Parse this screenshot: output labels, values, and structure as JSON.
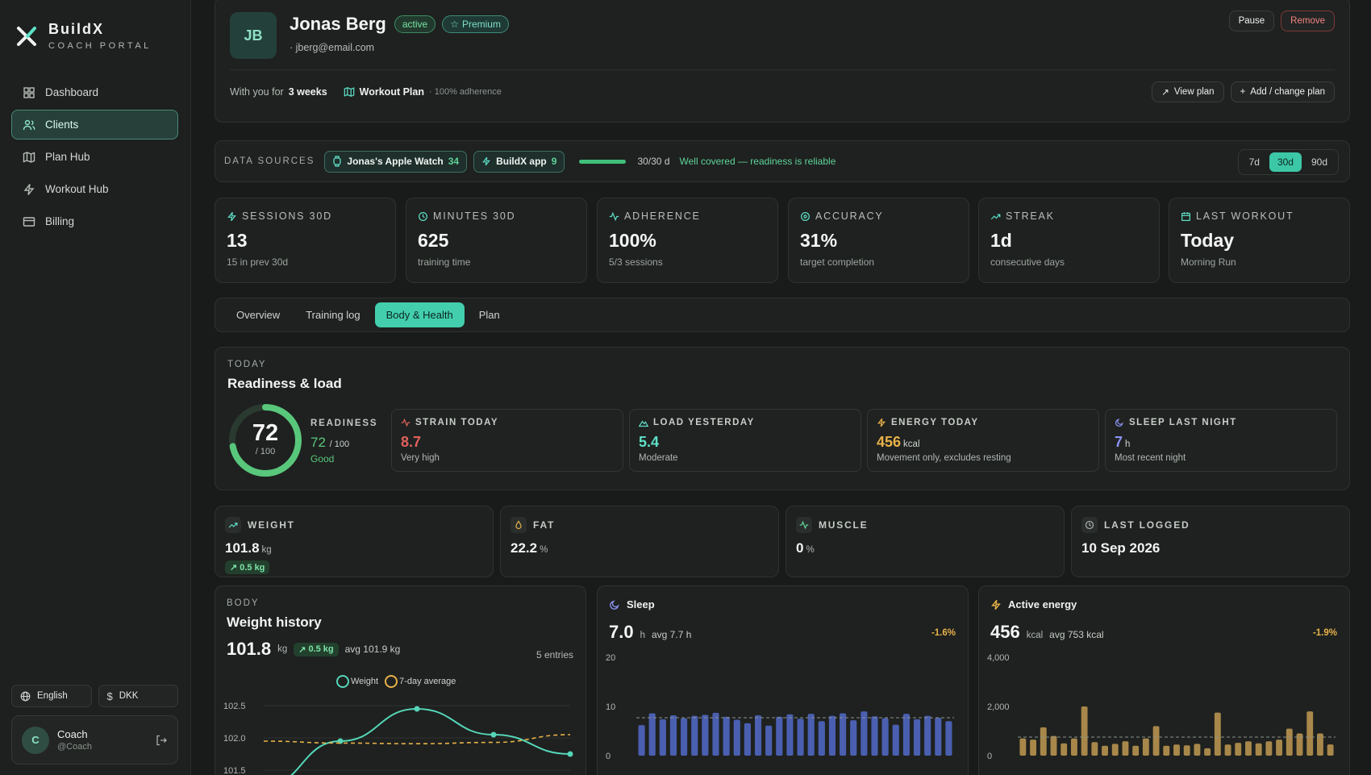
{
  "brand": {
    "title": "BuildX",
    "subtitle": "COACH PORTAL"
  },
  "nav": [
    {
      "label": "Dashboard",
      "icon": "grid-icon",
      "active": false
    },
    {
      "label": "Clients",
      "icon": "users-icon",
      "active": true
    },
    {
      "label": "Plan Hub",
      "icon": "map-icon",
      "active": false
    },
    {
      "label": "Workout Hub",
      "icon": "bolt-icon",
      "active": false
    },
    {
      "label": "Billing",
      "icon": "card-icon",
      "active": false
    }
  ],
  "footer": {
    "language": "English",
    "currency": "DKK",
    "coach_initial": "C",
    "coach_name": "Coach",
    "coach_handle": "@Coach"
  },
  "client": {
    "initials": "JB",
    "name": "Jonas Berg",
    "status": "active",
    "tier": "Premium",
    "email": "· jberg@email.com",
    "with_you_prefix": "With you for",
    "with_you": "3 weeks",
    "plan": "Workout Plan",
    "adherence": "· 100% adherence",
    "pause": "Pause",
    "remove": "Remove",
    "view_plan": "View plan",
    "change_plan": "Add / change plan"
  },
  "sources": {
    "label": "DATA SOURCES",
    "items": [
      {
        "name": "Jonas's Apple Watch",
        "count": "34"
      },
      {
        "name": "BuildX app",
        "count": "9"
      }
    ],
    "coverage": "30/30 d",
    "coverage_note": "Well covered — readiness is reliable",
    "ranges": [
      "7d",
      "30d",
      "90d"
    ],
    "active_range": "30d"
  },
  "stats": [
    {
      "label": "SESSIONS 30D",
      "value": "13",
      "sub": "15 in prev 30d",
      "icon": "bolt-icon"
    },
    {
      "label": "MINUTES 30D",
      "value": "625",
      "sub": "training time",
      "icon": "clock-icon"
    },
    {
      "label": "ADHERENCE",
      "value": "100%",
      "sub": "5/3 sessions",
      "icon": "pulse-icon"
    },
    {
      "label": "ACCURACY",
      "value": "31%",
      "sub": "target completion",
      "icon": "target-icon"
    },
    {
      "label": "STREAK",
      "value": "1d",
      "sub": "consecutive days",
      "icon": "trend-icon"
    },
    {
      "label": "LAST WORKOUT",
      "value": "Today",
      "sub": "Morning Run",
      "icon": "calendar-icon"
    }
  ],
  "tabs": [
    "Overview",
    "Training log",
    "Body & Health",
    "Plan"
  ],
  "active_tab": "Body & Health",
  "readiness": {
    "section": "TODAY",
    "title": "Readiness & load",
    "score": 72,
    "score_text": "72",
    "denom": "/ 100",
    "label": "READINESS",
    "value": "72",
    "value_unit": "/ 100",
    "state": "Good",
    "cards": [
      {
        "label": "STRAIN TODAY",
        "value": "8.7",
        "unit": "",
        "sub": "Very high",
        "color": "#e0615c",
        "icon": "pulse-icon"
      },
      {
        "label": "LOAD YESTERDAY",
        "value": "5.4",
        "unit": "",
        "sub": "Moderate",
        "color": "#5ee0c8",
        "icon": "mountain-icon"
      },
      {
        "label": "ENERGY TODAY",
        "value": "456",
        "unit": "kcal",
        "sub": "Movement only, excludes resting",
        "color": "#e8b14a",
        "icon": "bolt-icon"
      },
      {
        "label": "SLEEP LAST NIGHT",
        "value": "7",
        "unit": "h",
        "sub": "Most recent night",
        "color": "#8b93f5",
        "icon": "moon-icon"
      }
    ]
  },
  "body_stats": [
    {
      "label": "WEIGHT",
      "value": "101.8",
      "unit": "kg",
      "delta": "0.5 kg",
      "icon": "trend-icon"
    },
    {
      "label": "FAT",
      "value": "22.2",
      "unit": "%",
      "icon": "drop-icon"
    },
    {
      "label": "MUSCLE",
      "value": "0",
      "unit": "%",
      "icon": "pulse-icon"
    },
    {
      "label": "LAST LOGGED",
      "value": "10 Sep 2026",
      "unit": "",
      "icon": "clock-icon"
    }
  ],
  "weight_history": {
    "section": "BODY",
    "title": "Weight history",
    "value": "101.8",
    "unit": "kg",
    "delta": "0.5 kg",
    "avg": "avg 101.9 kg",
    "entries": "5 entries",
    "legend": [
      "Weight",
      "7-day average"
    ]
  },
  "sleep": {
    "title": "Sleep",
    "value": "7.0",
    "unit": "h",
    "avg": "avg 7.7 h",
    "pct": "-1.6%"
  },
  "energy": {
    "title": "Active energy",
    "value": "456",
    "unit": "kcal",
    "avg": "avg 753 kcal",
    "pct": "-1.9%"
  },
  "chart_data": [
    {
      "type": "line",
      "title": "Weight history",
      "yticks": [
        "102.5",
        "102.0",
        "101.5"
      ],
      "ylim": [
        101.4,
        102.6
      ],
      "series": [
        {
          "name": "Weight",
          "values": [
            101.25,
            101.95,
            102.45,
            102.05,
            101.75
          ],
          "color": "#55d6b9"
        },
        {
          "name": "7-day average",
          "values": [
            101.95,
            101.92,
            101.91,
            101.93,
            102.05
          ],
          "color": "#e8b14a"
        }
      ]
    },
    {
      "type": "bar",
      "title": "Sleep",
      "yticks": [
        "20",
        "10",
        "0"
      ],
      "ylim": [
        0,
        20
      ],
      "avg": 7.7,
      "color": "#4a5fb0",
      "values": [
        6.2,
        8.6,
        7.4,
        8.2,
        7.6,
        8.1,
        8.3,
        8.7,
        7.9,
        7.3,
        6.6,
        8.2,
        6.1,
        7.9,
        8.4,
        7.5,
        8.5,
        7.0,
        8.1,
        8.6,
        7.2,
        9.0,
        8.0,
        7.6,
        6.3,
        8.5,
        7.4,
        8.1,
        7.7,
        7.0
      ]
    },
    {
      "type": "bar",
      "title": "Active energy",
      "yticks": [
        "4,000",
        "2,000",
        "0"
      ],
      "ylim": [
        0,
        4000
      ],
      "avg": 753,
      "color": "#a8874a",
      "values": [
        700,
        650,
        1150,
        800,
        500,
        700,
        2000,
        550,
        400,
        480,
        580,
        400,
        700,
        1200,
        400,
        450,
        420,
        480,
        300,
        1750,
        450,
        520,
        580,
        500,
        580,
        650,
        1100,
        900,
        1800,
        900,
        456
      ]
    }
  ]
}
